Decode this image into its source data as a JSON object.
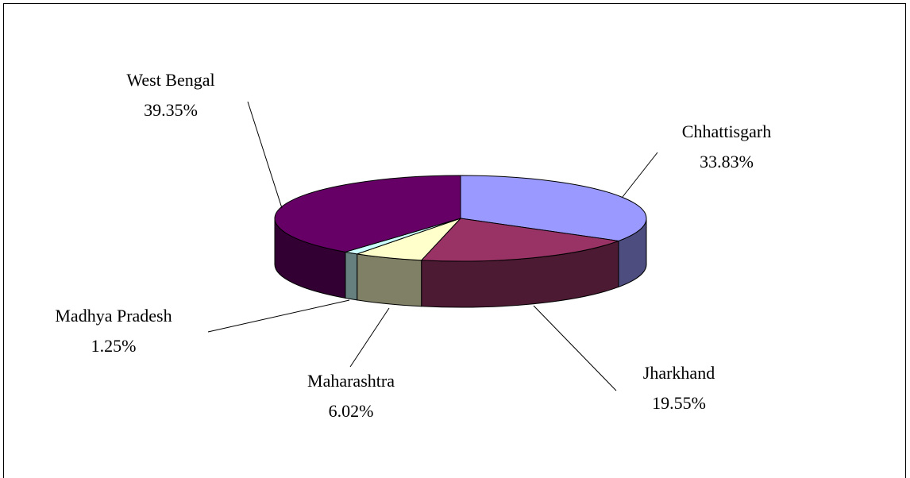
{
  "chart_data": {
    "type": "pie",
    "categories": [
      "Chhattisgarh",
      "Jharkhand",
      "Maharashtra",
      "Madhya Pradesh",
      "West Bengal"
    ],
    "values": [
      33.83,
      19.55,
      6.02,
      1.25,
      39.35
    ],
    "value_labels": [
      "33.83%",
      "19.55%",
      "6.02%",
      "1.25%",
      "39.35%"
    ],
    "colors": [
      "#9999ff",
      "#993366",
      "#ffffcc",
      "#ccffff",
      "#660066"
    ]
  }
}
